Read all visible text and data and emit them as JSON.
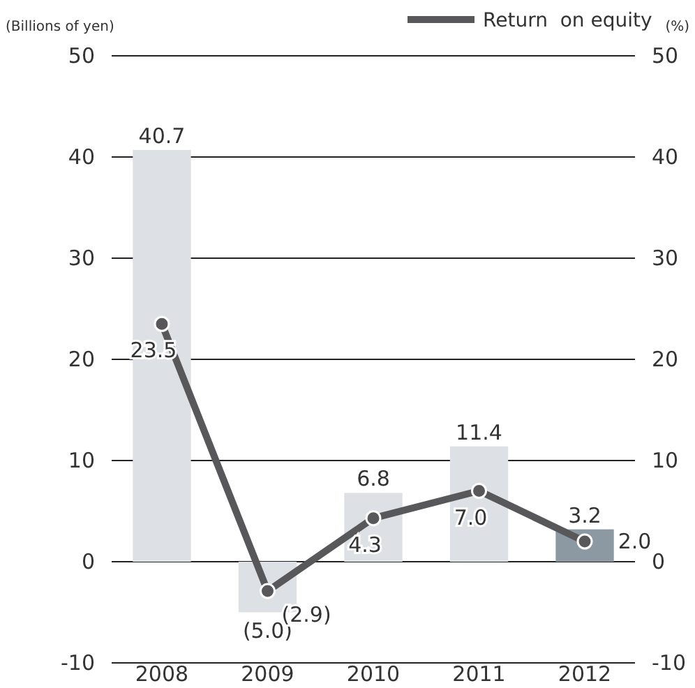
{
  "chart_data": {
    "type": "bar",
    "categories": [
      "2008",
      "2009",
      "2010",
      "2011",
      "2012"
    ],
    "ylabel": "(Billions of yen)",
    "y2label": "(%)",
    "ylim": [
      -10,
      50
    ],
    "yticks": [
      -10,
      0,
      10,
      20,
      30,
      40,
      50
    ],
    "y2lim": [
      -10,
      50
    ],
    "y2ticks": [
      -10,
      0,
      10,
      20,
      30,
      40,
      50
    ],
    "grid": "y",
    "legend": "top right",
    "series": [
      {
        "colors": [
          "#dde1e5",
          "#dde1e5",
          "#dde1e5",
          "#dde1e5",
          "#8d99a2"
        ],
        "values": [
          40.7,
          -5.0,
          6.8,
          11.4,
          3.2
        ],
        "value_labels": [
          "40.7",
          "(5.0)",
          "6.8",
          "11.4",
          "3.2"
        ]
      },
      {
        "type": "line",
        "name": "Return  on equity",
        "color": "#58585a",
        "axis": "y2",
        "marker": "circle",
        "values": [
          23.5,
          -2.9,
          4.3,
          7.0,
          2.0
        ],
        "value_labels": [
          "23.5",
          "(2.9)",
          "4.3",
          "7.0",
          "2.0"
        ]
      }
    ]
  }
}
